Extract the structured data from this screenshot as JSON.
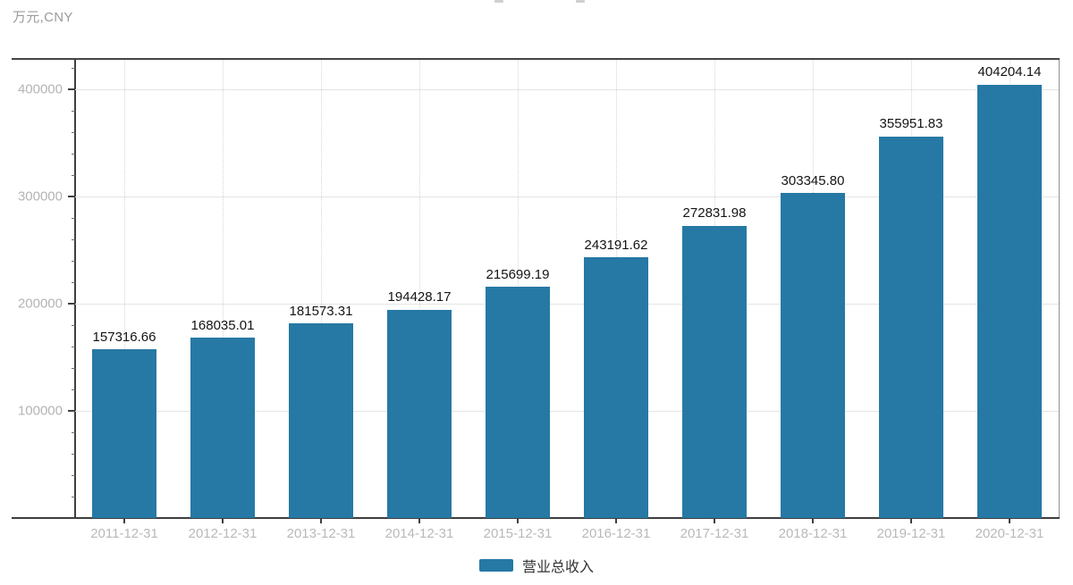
{
  "unit_label": "万元,CNY",
  "legend": {
    "position": "bottom",
    "items": [
      {
        "label": "营业总收入",
        "color": "#2679a4"
      }
    ]
  },
  "chart_data": {
    "type": "bar",
    "title": "",
    "ylabel": "万元,CNY",
    "categories": [
      "2011-12-31",
      "2012-12-31",
      "2013-12-31",
      "2014-12-31",
      "2015-12-31",
      "2016-12-31",
      "2017-12-31",
      "2018-12-31",
      "2019-12-31",
      "2020-12-31"
    ],
    "series": [
      {
        "name": "营业总收入",
        "values": [
          157316.66,
          168035.01,
          181573.31,
          194428.17,
          215699.19,
          243191.62,
          272831.98,
          303345.8,
          355951.83,
          404204.14
        ]
      }
    ],
    "value_labels": [
      "157316.66",
      "168035.01",
      "181573.31",
      "194428.17",
      "215699.19",
      "243191.62",
      "272831.98",
      "303345.80",
      "355951.83",
      "404204.14"
    ],
    "ylim": [
      0,
      427500
    ],
    "y_axis": {
      "major_ticks": [
        100000,
        200000,
        300000,
        400000
      ],
      "minor_step": 20000
    },
    "grid": true,
    "legend_position": "bottom",
    "bar_color": "#2679a4"
  }
}
